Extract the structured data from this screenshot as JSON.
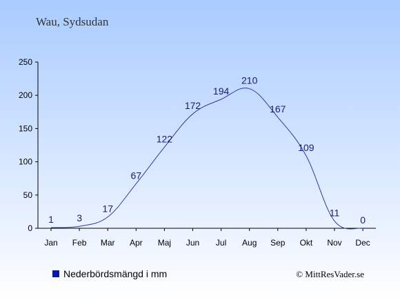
{
  "title": "Wau, Sydsudan",
  "legend": {
    "label": "Nederbördsmängd i mm",
    "color": "#0a1aa0"
  },
  "credit": "© MittResVader.se",
  "colors": {
    "line": "#2a3aa0",
    "bg_top": "#a9cbff",
    "bg_bottom": "#ffffff",
    "axis": "#000000"
  },
  "chart_data": {
    "type": "line",
    "categories": [
      "Jan",
      "Feb",
      "Mar",
      "Apr",
      "Maj",
      "Jun",
      "Jul",
      "Aug",
      "Sep",
      "Okt",
      "Nov",
      "Dec"
    ],
    "series": [
      {
        "name": "Nederbördsmängd i mm",
        "values": [
          1,
          3,
          17,
          67,
          122,
          172,
          194,
          210,
          167,
          109,
          11,
          0
        ]
      }
    ],
    "ylim": [
      0,
      250
    ],
    "yticks": [
      0,
      50,
      100,
      150,
      200,
      250
    ],
    "xlabel": "",
    "ylabel": "",
    "grid": false,
    "legend_position": "bottom-left"
  }
}
